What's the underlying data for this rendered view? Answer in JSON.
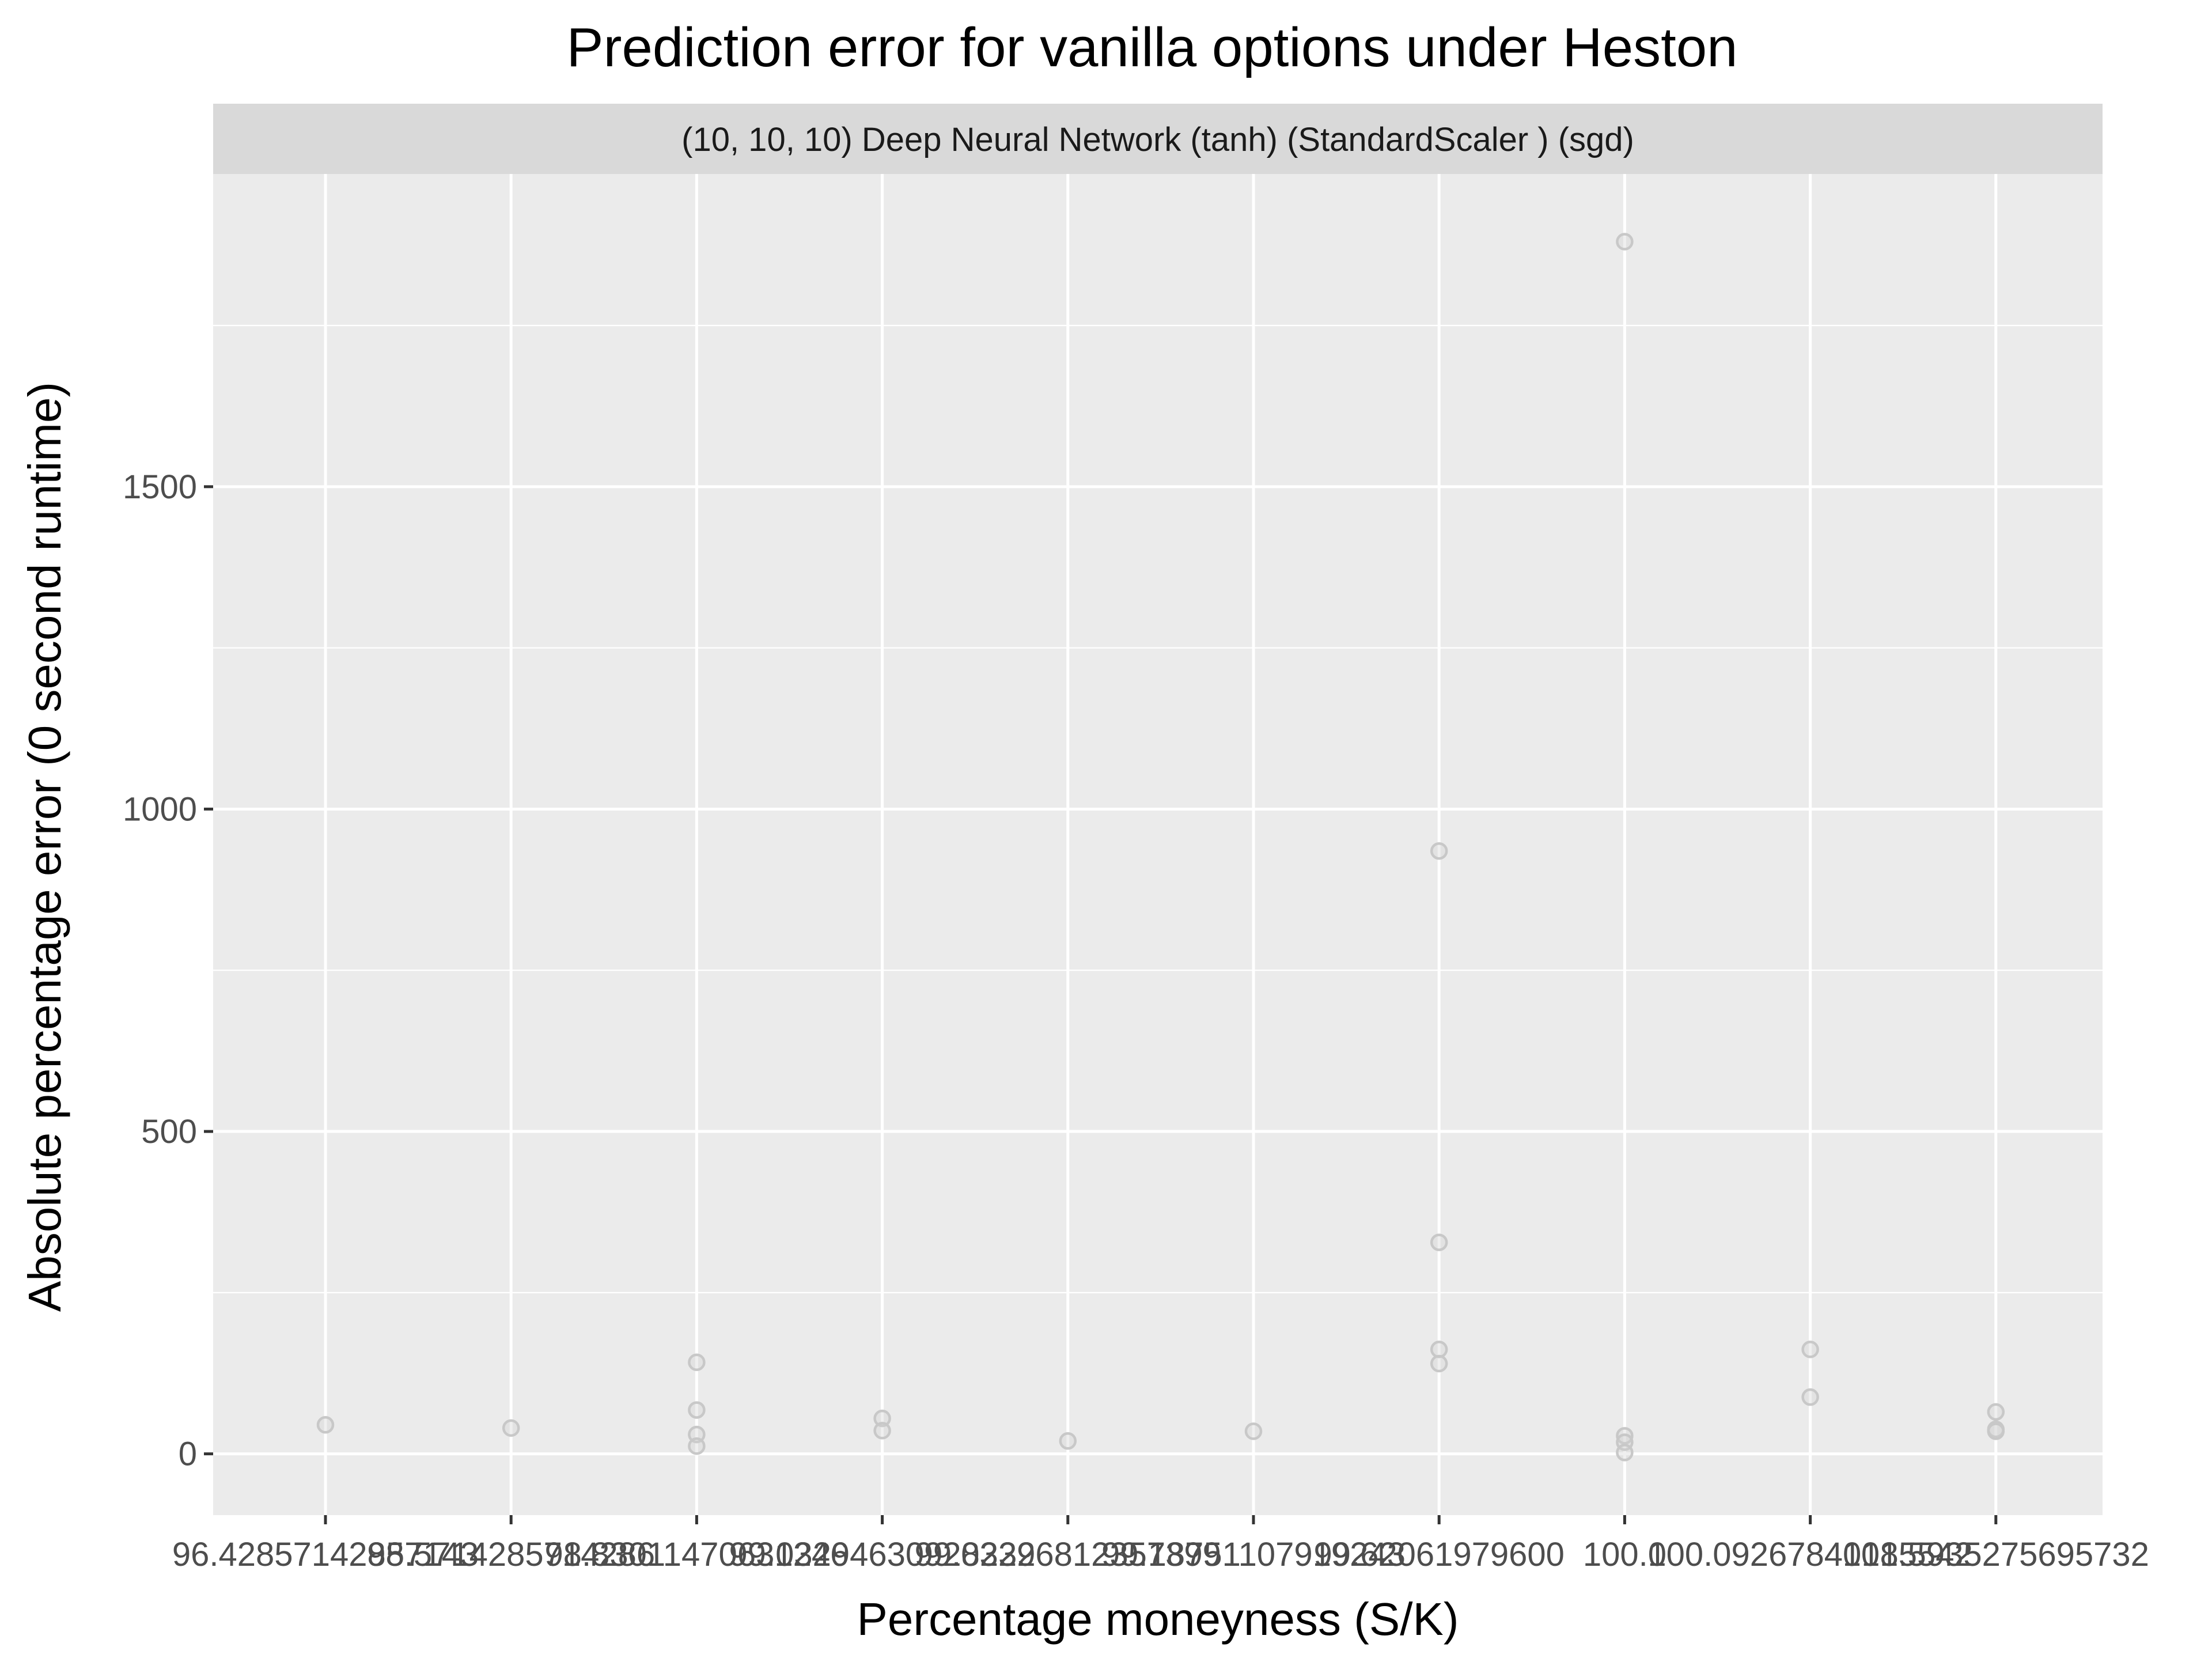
{
  "chart_data": {
    "type": "scatter",
    "title": "Prediction error for vanilla options under Heston",
    "facet_label": "(10, 10, 10) Deep Neural Network (tanh) (StandardScaler ) (sgd)",
    "xlabel": "Percentage moneyness (S/K)",
    "ylabel": "Absolute percentage error (0 second runtime)",
    "x_is_categorical": true,
    "categories": [
      "96.42857142857143",
      "98.5714285714286",
      "98.83011470631246",
      "99.03294630928232",
      "99.03296812357399",
      "99.18751107919243",
      "99.62061979600",
      "100.0",
      "100.09267840185542",
      "101.5935275695732"
    ],
    "y_ticks": [
      0,
      500,
      1000,
      1500
    ],
    "ylim": [
      -95,
      1985
    ],
    "grid": true,
    "legend": "none",
    "colors": {
      "panel": "#ebebeb",
      "grid": "#ffffff",
      "strip": "#d9d9d9",
      "point_stroke": "#c8c8c8",
      "tick": "#333333"
    },
    "points": [
      {
        "category": 0,
        "y": 45
      },
      {
        "category": 1,
        "y": 40
      },
      {
        "category": 2,
        "y": 142
      },
      {
        "category": 2,
        "y": 68
      },
      {
        "category": 2,
        "y": 30
      },
      {
        "category": 2,
        "y": 12
      },
      {
        "category": 3,
        "y": 55
      },
      {
        "category": 3,
        "y": 36
      },
      {
        "category": 4,
        "y": 20
      },
      {
        "category": 5,
        "y": 35
      },
      {
        "category": 6,
        "y": 935
      },
      {
        "category": 6,
        "y": 328
      },
      {
        "category": 6,
        "y": 162
      },
      {
        "category": 6,
        "y": 140
      },
      {
        "category": 7,
        "y": 1880
      },
      {
        "category": 7,
        "y": 28
      },
      {
        "category": 7,
        "y": 18
      },
      {
        "category": 7,
        "y": 2
      },
      {
        "category": 8,
        "y": 162
      },
      {
        "category": 8,
        "y": 88
      },
      {
        "category": 9,
        "y": 65
      },
      {
        "category": 9,
        "y": 38
      },
      {
        "category": 9,
        "y": 35
      }
    ]
  }
}
